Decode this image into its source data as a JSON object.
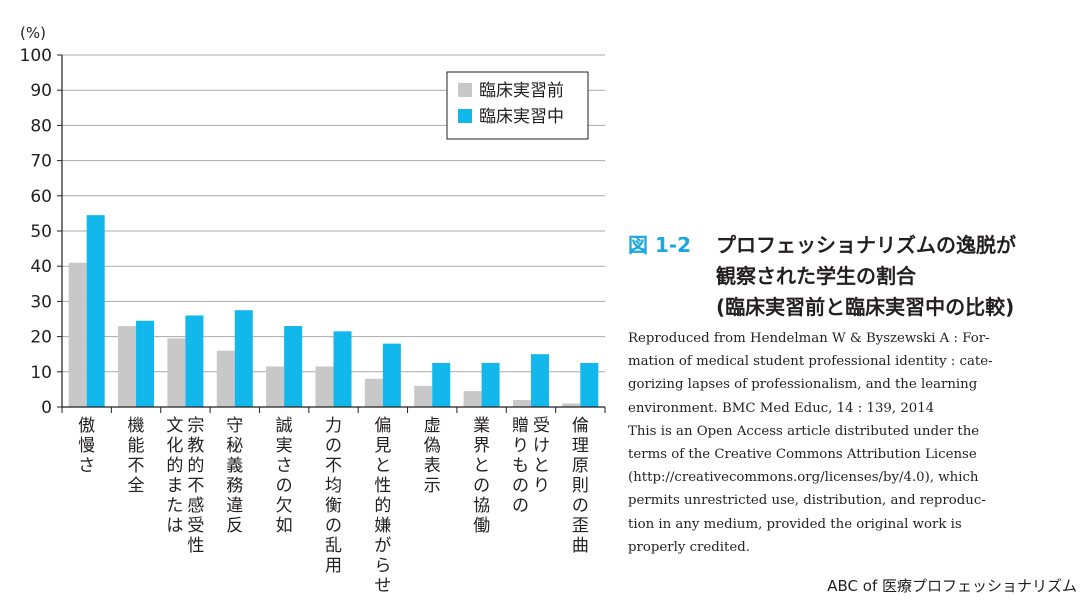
{
  "chart_data": {
    "type": "bar",
    "ylabel": "(%)",
    "ylim": [
      0,
      100
    ],
    "yticks": [
      "0",
      "10",
      "20",
      "30",
      "40",
      "50",
      "60",
      "70",
      "80",
      "90",
      "100"
    ],
    "grid": true,
    "legend_position": "top-right",
    "categories": [
      "傲慢さ",
      "機能不全",
      "宗教的不感受性|文化的または",
      "守秘義務違反",
      "誠実さの欠如",
      "力の不均衡の乱用",
      "偏見と性的嫌がらせ",
      "虚偽表示",
      "業界との協働",
      "受けとり|贈りものの",
      "倫理原則の歪曲"
    ],
    "series": [
      {
        "name": "臨床実習前",
        "color": "#c8c8c8",
        "values": [
          41,
          23,
          19.5,
          16,
          11.5,
          11.5,
          8,
          6,
          4.5,
          2,
          1
        ]
      },
      {
        "name": "臨床実習中",
        "color": "#12b7ec",
        "values": [
          54.5,
          24.5,
          26,
          27.5,
          23,
          21.5,
          18,
          12.5,
          12.5,
          15,
          12.5
        ]
      }
    ]
  },
  "caption": {
    "figure_number": "図 1-2",
    "title_lines": [
      "プロフェッショナリズムの逸脱が",
      "観察された学生の割合",
      "(臨床実習前と臨床実習中の比較)"
    ],
    "reference_lines": [
      "Reproduced from Hendelman W & Byszewski A : For-",
      "mation of medical student professional identity : cate-",
      "gorizing lapses of professionalism, and the learning",
      "environment. BMC Med Educ, 14 : 139, 2014",
      "This is an Open Access article distributed under the",
      "terms of the Creative Commons Attribution License",
      "(http://creativecommons.org/licenses/by/4.0), which",
      "permits unrestricted use, distribution, and reproduc-",
      "tion in any medium, provided the original work is",
      "properly credited."
    ]
  },
  "footer": {
    "text": "ABC of 医療プロフェッショナリズム"
  }
}
